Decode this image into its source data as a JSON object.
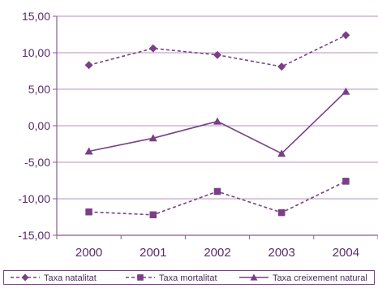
{
  "chart_data": {
    "type": "line",
    "categories": [
      "2000",
      "2001",
      "2002",
      "2003",
      "2004"
    ],
    "ylim": [
      -15,
      15
    ],
    "yticks": [
      15,
      10,
      5,
      0,
      -5,
      -10,
      -15
    ],
    "ytick_labels": [
      "15,00",
      "10,00",
      "5,00",
      "0,00",
      "-5,00",
      "-10,00",
      "-15,00"
    ],
    "grid": true,
    "legend_position": "bottom",
    "series": [
      {
        "name": "Taxa natalitat",
        "values": [
          8.3,
          10.6,
          9.7,
          8.1,
          12.4
        ],
        "marker": "diamond",
        "dash": "dashed"
      },
      {
        "name": "Taxa mortalitat",
        "values": [
          -11.8,
          -12.2,
          -9.0,
          -11.9,
          -7.6
        ],
        "marker": "square",
        "dash": "dashed"
      },
      {
        "name": "Taxa creixement natural",
        "values": [
          -3.5,
          -1.7,
          0.6,
          -3.8,
          4.7
        ],
        "marker": "triangle",
        "dash": "solid"
      }
    ],
    "colors": {
      "series": "#7a3f87",
      "axis": "#8a5a95",
      "grid": "#b892bf",
      "text": "#5a2b6b"
    }
  }
}
